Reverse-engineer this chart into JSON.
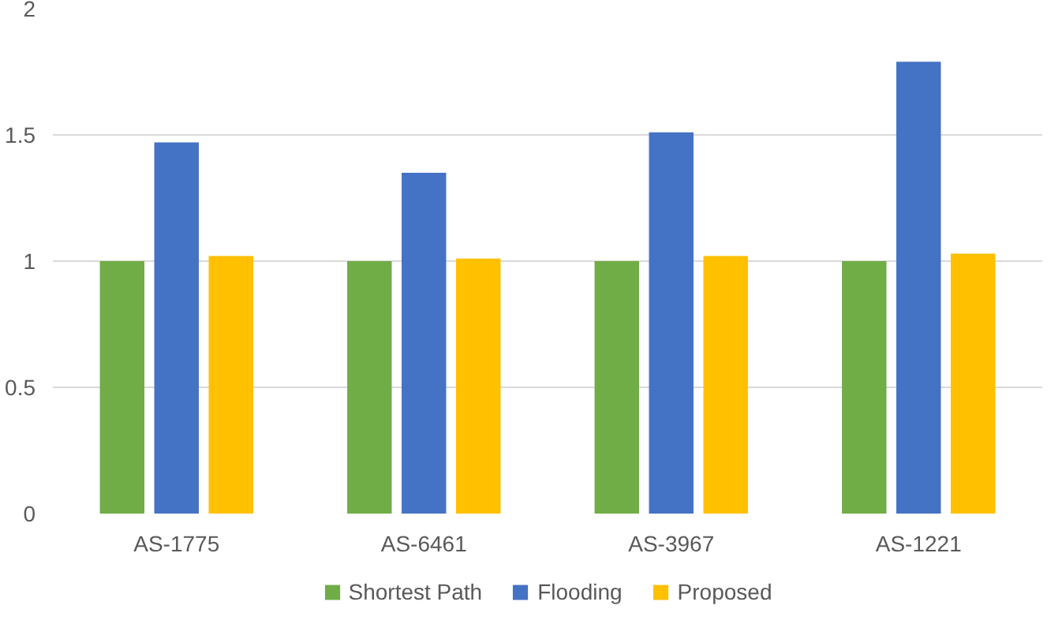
{
  "chart_data": {
    "type": "bar",
    "categories": [
      "AS-1775",
      "AS-6461",
      "AS-3967",
      "AS-1221"
    ],
    "series": [
      {
        "name": "Shortest Path",
        "color": "#70ad47",
        "values": [
          1.0,
          1.0,
          1.0,
          1.0
        ]
      },
      {
        "name": "Flooding",
        "color": "#4472c4",
        "values": [
          1.47,
          1.35,
          1.51,
          1.79
        ]
      },
      {
        "name": "Proposed",
        "color": "#ffc000",
        "values": [
          1.02,
          1.01,
          1.02,
          1.03
        ]
      }
    ],
    "ylim": [
      0,
      2
    ],
    "yticks": [
      0,
      0.5,
      1,
      1.5,
      2
    ],
    "grid": "y",
    "legend": "bottom"
  }
}
